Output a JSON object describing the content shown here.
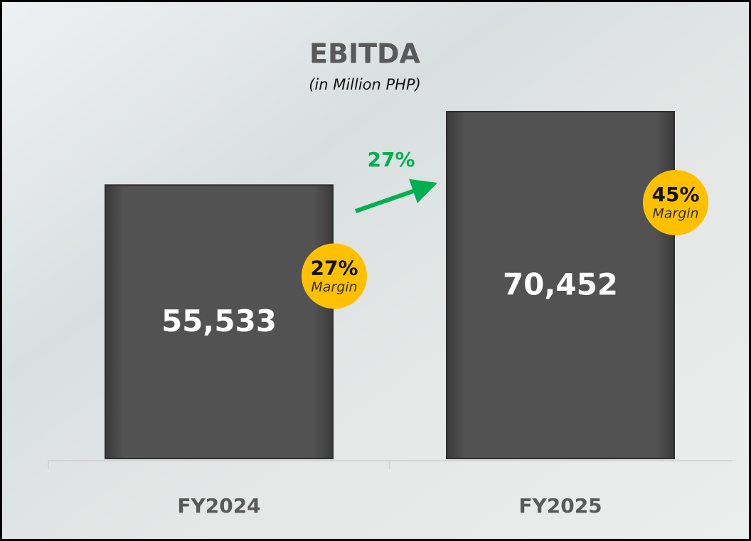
{
  "chart_data": {
    "type": "bar",
    "title": "EBITDA",
    "subtitle": "(in Million PHP)",
    "categories": [
      "FY2024",
      "FY2025"
    ],
    "values": [
      55533,
      70452
    ],
    "value_labels": [
      "55,533",
      "70,452"
    ],
    "color": "#4d4d4d",
    "growth_label": "27%",
    "margins": [
      {
        "label": "27%",
        "caption": "Margin"
      },
      {
        "label": "45%",
        "caption": "Margin"
      }
    ]
  }
}
